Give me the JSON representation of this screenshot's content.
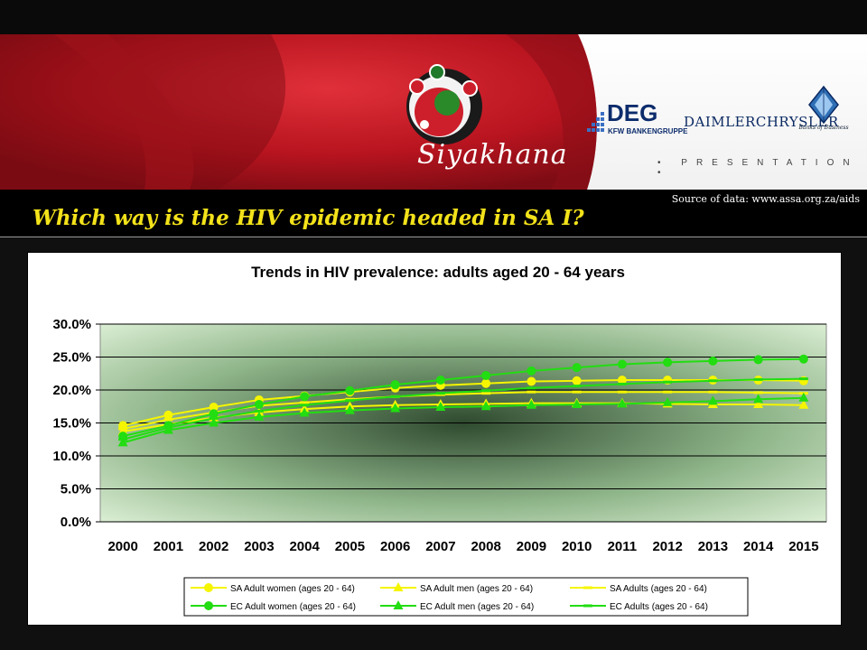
{
  "header": {
    "brand": "Siyakhana",
    "sponsor_deg": "DEG",
    "sponsor_deg_sub": "KFW BANKENGRUPPE",
    "sponsor_dc": "DAIMLERCHRYSLER",
    "sponsor_bank": "Banks of Business",
    "tagline": "• PRESENTATION •"
  },
  "slide": {
    "title": "Which way is the HIV epidemic headed in SA I?",
    "source_note": "Source of data: www.assa.org.za/aids"
  },
  "colors": {
    "yellow_series": "#f5f500",
    "green_series": "#22dd11",
    "title": "#f3e21a",
    "banner_red": "#cc1f2b"
  },
  "chart_data": {
    "type": "line",
    "title": "Trends in HIV prevalence: adults aged 20 - 64 years",
    "x": [
      "2000",
      "2001",
      "2002",
      "2003",
      "2004",
      "2005",
      "2006",
      "2007",
      "2008",
      "2009",
      "2010",
      "2011",
      "2012",
      "2013",
      "2014",
      "2015"
    ],
    "ylim": [
      0,
      0.3
    ],
    "yticks": [
      "0.0%",
      "5.0%",
      "10.0%",
      "15.0%",
      "20.0%",
      "25.0%",
      "30.0%"
    ],
    "grid": true,
    "legend_position": "bottom",
    "series": [
      {
        "name": "SA Adult women (ages 20 - 64)",
        "marker": "circle",
        "color": "#f5f500",
        "values": [
          0.146,
          0.162,
          0.174,
          0.185,
          0.191,
          0.197,
          0.203,
          0.207,
          0.21,
          0.213,
          0.214,
          0.215,
          0.215,
          0.215,
          0.215,
          0.214
        ]
      },
      {
        "name": "SA Adult men (ages 20 - 64)",
        "marker": "triangle",
        "color": "#f5f500",
        "values": [
          0.137,
          0.148,
          0.158,
          0.166,
          0.171,
          0.175,
          0.177,
          0.178,
          0.179,
          0.18,
          0.18,
          0.18,
          0.179,
          0.178,
          0.178,
          0.177
        ]
      },
      {
        "name": "SA Adults (ages 20 - 64)",
        "marker": "dash",
        "color": "#f5f500",
        "values": [
          0.141,
          0.155,
          0.166,
          0.176,
          0.181,
          0.186,
          0.19,
          0.193,
          0.195,
          0.197,
          0.197,
          0.197,
          0.197,
          0.197,
          0.196,
          0.195
        ]
      },
      {
        "name": "EC Adult women (ages 20 - 64)",
        "marker": "circle",
        "color": "#22dd11",
        "values": [
          0.13,
          0.146,
          0.164,
          0.178,
          0.19,
          0.199,
          0.208,
          0.215,
          0.222,
          0.229,
          0.234,
          0.239,
          0.242,
          0.244,
          0.246,
          0.247
        ]
      },
      {
        "name": "EC Adult men (ages 20 - 64)",
        "marker": "triangle",
        "color": "#22dd11",
        "values": [
          0.12,
          0.139,
          0.15,
          0.159,
          0.165,
          0.169,
          0.172,
          0.174,
          0.175,
          0.177,
          0.178,
          0.179,
          0.181,
          0.183,
          0.186,
          0.188
        ]
      },
      {
        "name": "EC Adults (ages 20 - 64)",
        "marker": "dash",
        "color": "#22dd11",
        "values": [
          0.125,
          0.143,
          0.157,
          0.168,
          0.177,
          0.184,
          0.19,
          0.195,
          0.199,
          0.203,
          0.206,
          0.209,
          0.212,
          0.214,
          0.216,
          0.217
        ]
      }
    ]
  }
}
